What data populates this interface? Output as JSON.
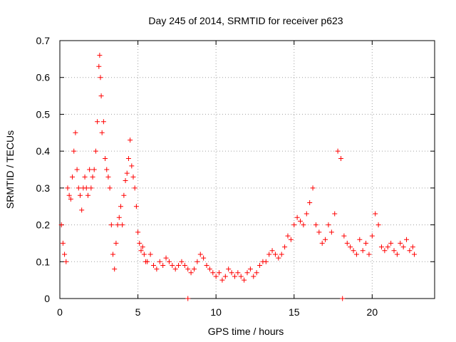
{
  "chart_data": {
    "type": "scatter",
    "title": "Day 245 of 2014, SRMTID for receiver p623",
    "xlabel": "GPS time / hours",
    "ylabel": "SRMTID / TECUs",
    "xlim": [
      0,
      24
    ],
    "ylim": [
      0,
      0.7
    ],
    "xticks": [
      0,
      5,
      10,
      15,
      20
    ],
    "xtick_labels": [
      "0",
      "5",
      "10",
      "15",
      "20"
    ],
    "yticks": [
      0,
      0.1,
      0.2,
      0.3,
      0.4,
      0.5,
      0.6,
      0.7
    ],
    "ytick_labels": [
      "0",
      "0.1",
      "0.2",
      "0.3",
      "0.4",
      "0.5",
      "0.6",
      "0.7"
    ],
    "grid": true,
    "marker": "+",
    "color": "#ff0000",
    "series": [
      {
        "name": "SRMTID",
        "x": [
          0.1,
          0.2,
          0.3,
          0.4,
          0.5,
          0.6,
          0.7,
          0.8,
          0.9,
          1.0,
          1.1,
          1.2,
          1.3,
          1.4,
          1.5,
          1.6,
          1.7,
          1.8,
          1.9,
          2.0,
          2.1,
          2.2,
          2.3,
          2.4,
          2.5,
          2.55,
          2.6,
          2.65,
          2.7,
          2.8,
          2.9,
          3.0,
          3.1,
          3.2,
          3.3,
          3.4,
          3.5,
          3.6,
          3.7,
          3.8,
          3.9,
          4.0,
          4.1,
          4.2,
          4.3,
          4.4,
          4.5,
          4.6,
          4.7,
          4.8,
          4.9,
          5.0,
          5.1,
          5.2,
          5.3,
          5.4,
          5.5,
          5.6,
          5.8,
          6.0,
          6.2,
          6.4,
          6.6,
          6.8,
          7.0,
          7.2,
          7.4,
          7.6,
          7.8,
          8.0,
          8.2,
          8.4,
          8.6,
          8.8,
          9.0,
          9.2,
          9.4,
          9.6,
          9.8,
          10.0,
          10.2,
          10.4,
          10.6,
          10.8,
          11.0,
          11.2,
          11.4,
          11.6,
          11.8,
          12.0,
          12.2,
          12.4,
          12.6,
          12.8,
          13.0,
          13.2,
          13.4,
          13.6,
          13.8,
          14.0,
          14.2,
          14.4,
          14.6,
          14.8,
          15.0,
          15.2,
          15.4,
          15.6,
          15.8,
          16.0,
          16.2,
          16.4,
          16.6,
          16.8,
          17.0,
          17.2,
          17.4,
          17.6,
          17.8,
          18.0,
          18.2,
          18.4,
          18.6,
          18.8,
          19.0,
          19.2,
          19.4,
          19.6,
          19.8,
          20.0,
          20.2,
          20.4,
          20.6,
          20.8,
          21.0,
          21.2,
          21.4,
          21.6,
          21.8,
          22.0,
          22.2,
          22.4,
          22.6,
          22.7
        ],
        "y": [
          0.2,
          0.15,
          0.12,
          0.1,
          0.3,
          0.28,
          0.27,
          0.33,
          0.4,
          0.45,
          0.35,
          0.3,
          0.28,
          0.24,
          0.3,
          0.33,
          0.3,
          0.28,
          0.35,
          0.3,
          0.33,
          0.35,
          0.4,
          0.48,
          0.63,
          0.66,
          0.6,
          0.55,
          0.45,
          0.48,
          0.38,
          0.35,
          0.33,
          0.3,
          0.2,
          0.12,
          0.08,
          0.15,
          0.2,
          0.22,
          0.25,
          0.2,
          0.28,
          0.32,
          0.34,
          0.38,
          0.43,
          0.36,
          0.33,
          0.3,
          0.25,
          0.18,
          0.15,
          0.13,
          0.14,
          0.12,
          0.1,
          0.1,
          0.12,
          0.09,
          0.08,
          0.1,
          0.09,
          0.11,
          0.1,
          0.09,
          0.08,
          0.09,
          0.1,
          0.09,
          0.08,
          0.07,
          0.08,
          0.1,
          0.12,
          0.11,
          0.09,
          0.08,
          0.07,
          0.06,
          0.07,
          0.05,
          0.06,
          0.08,
          0.07,
          0.06,
          0.07,
          0.06,
          0.05,
          0.07,
          0.08,
          0.06,
          0.07,
          0.09,
          0.1,
          0.1,
          0.12,
          0.13,
          0.12,
          0.11,
          0.12,
          0.14,
          0.17,
          0.16,
          0.2,
          0.22,
          0.21,
          0.2,
          0.23,
          0.26,
          0.3,
          0.2,
          0.18,
          0.15,
          0.16,
          0.2,
          0.18,
          0.23,
          0.4,
          0.38,
          0.17,
          0.15,
          0.14,
          0.13,
          0.12,
          0.16,
          0.13,
          0.15,
          0.12,
          0.17,
          0.23,
          0.2,
          0.14,
          0.13,
          0.14,
          0.15,
          0.13,
          0.12,
          0.15,
          0.14,
          0.16,
          0.13,
          0.14,
          0.12
        ]
      }
    ],
    "outliers": [
      {
        "x": 8.2,
        "y": 0.0
      },
      {
        "x": 18.1,
        "y": 0.0
      }
    ]
  }
}
